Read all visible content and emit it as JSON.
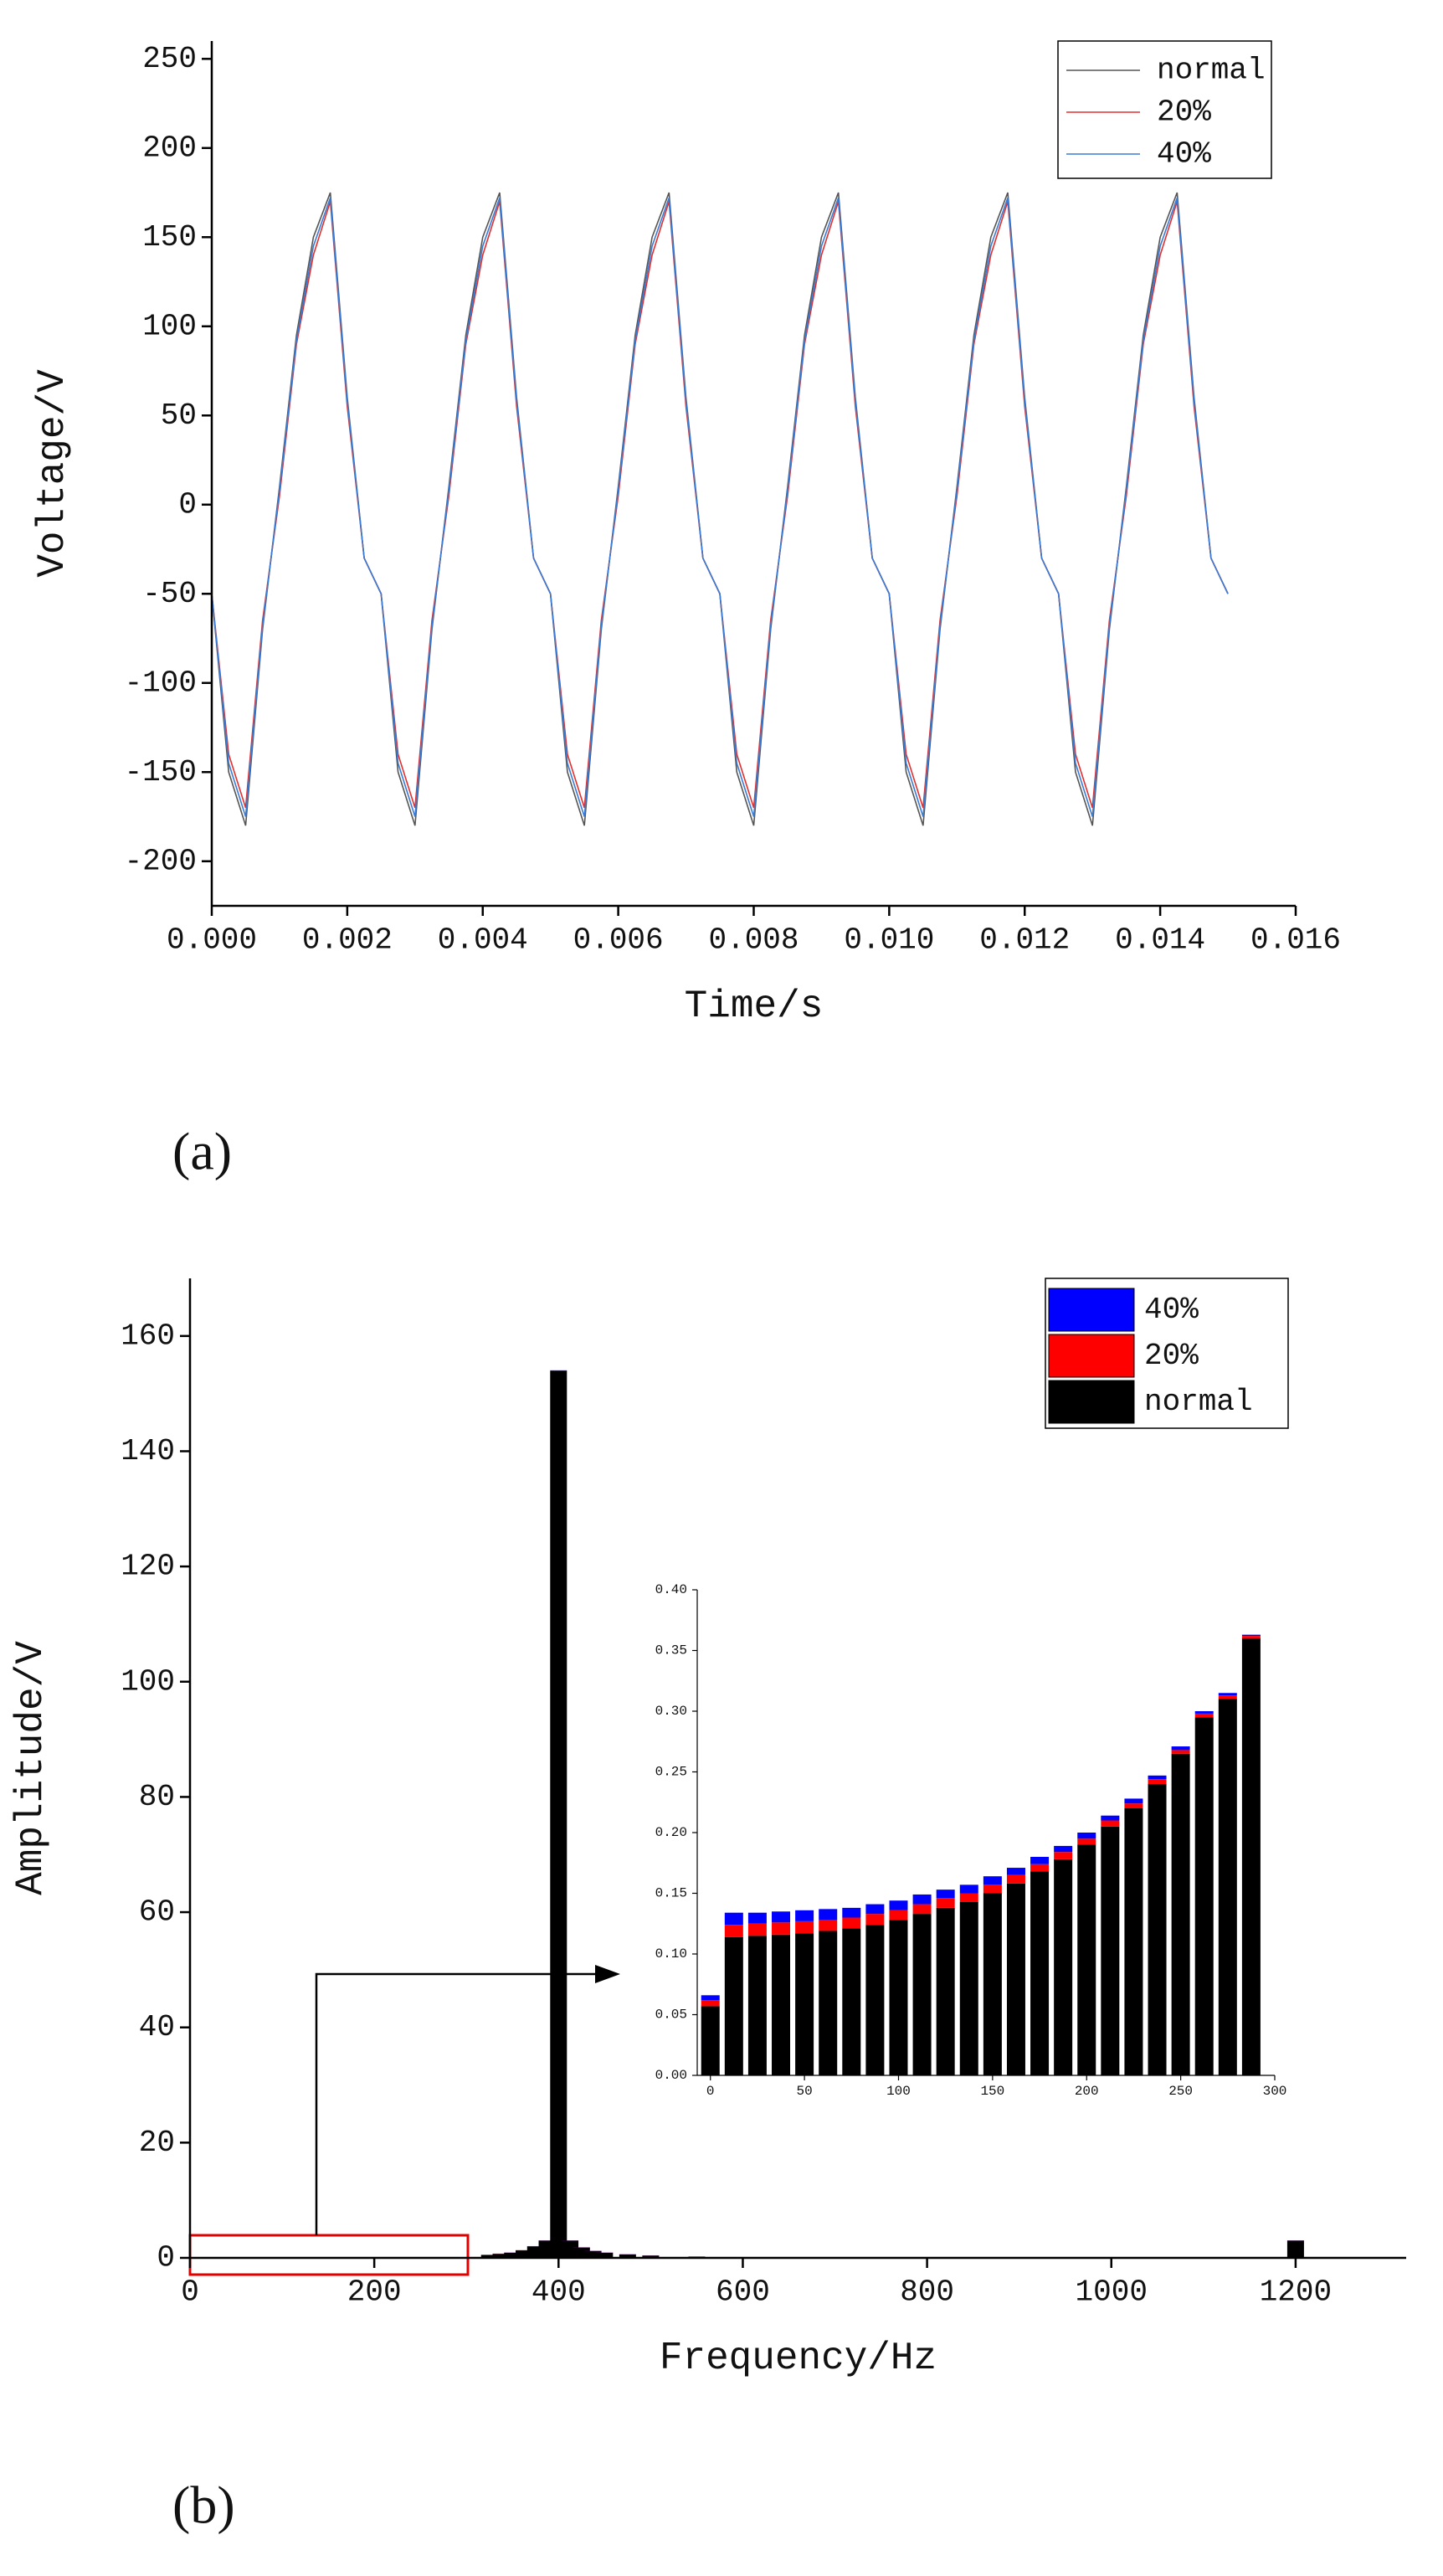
{
  "chart_data": [
    {
      "type": "line",
      "annotation": "(a)",
      "xlabel": "Time/s",
      "ylabel": "Voltage/V",
      "x": [
        0,
        0.00025,
        0.0005,
        0.00075,
        0.001,
        0.00125,
        0.0015,
        0.00175,
        0.002,
        0.00225,
        0.0025,
        0.00275,
        0.003,
        0.00325,
        0.0035,
        0.00375,
        0.004,
        0.00425,
        0.0045,
        0.00475,
        0.005,
        0.00525,
        0.0055,
        0.00575,
        0.006,
        0.00625,
        0.0065,
        0.00675,
        0.007,
        0.00725,
        0.0075,
        0.00775,
        0.008,
        0.00825,
        0.0085,
        0.00875,
        0.009,
        0.00925,
        0.0095,
        0.00975,
        0.01,
        0.01025,
        0.0105,
        0.01075,
        0.011,
        0.01125,
        0.0115,
        0.01175,
        0.012,
        0.01225,
        0.0125,
        0.01275,
        0.013,
        0.01325,
        0.0135,
        0.01375,
        0.014,
        0.01425,
        0.0145,
        0.01475,
        0.015
      ],
      "series": [
        {
          "name": "normal",
          "color": "#555555",
          "values": [
            -50,
            -150,
            -180,
            -70,
            10,
            95,
            150,
            175,
            60,
            -30,
            -50,
            -150,
            -180,
            -70,
            10,
            95,
            150,
            175,
            60,
            -30,
            -50,
            -150,
            -180,
            -70,
            10,
            95,
            150,
            175,
            60,
            -30,
            -50,
            -150,
            -180,
            -70,
            10,
            95,
            150,
            175,
            60,
            -30,
            -50,
            -150,
            -180,
            -70,
            10,
            95,
            150,
            175,
            60,
            -30,
            -50,
            -150,
            -180,
            -70,
            10,
            95,
            150,
            175,
            60,
            -30,
            -50
          ]
        },
        {
          "name": "20%",
          "color": "#e03030",
          "values": [
            -50,
            -140,
            -170,
            -65,
            5,
            90,
            140,
            170,
            55,
            -30,
            -50,
            -140,
            -170,
            -65,
            5,
            90,
            140,
            170,
            55,
            -30,
            -50,
            -140,
            -170,
            -65,
            5,
            90,
            140,
            170,
            55,
            -30,
            -50,
            -140,
            -170,
            -65,
            5,
            90,
            140,
            170,
            55,
            -30,
            -50,
            -140,
            -170,
            -65,
            5,
            90,
            140,
            170,
            55,
            -30,
            -50,
            -140,
            -170,
            -65,
            5,
            90,
            140,
            170,
            55,
            -30,
            -50
          ]
        },
        {
          "name": "40%",
          "color": "#3a7bd5",
          "values": [
            -50,
            -145,
            -175,
            -68,
            8,
            92,
            145,
            172,
            58,
            -30,
            -50,
            -145,
            -175,
            -68,
            8,
            92,
            145,
            172,
            58,
            -30,
            -50,
            -145,
            -175,
            -68,
            8,
            92,
            145,
            172,
            58,
            -30,
            -50,
            -145,
            -175,
            -68,
            8,
            92,
            145,
            172,
            58,
            -30,
            -50,
            -145,
            -175,
            -68,
            8,
            92,
            145,
            172,
            58,
            -30,
            -50,
            -145,
            -175,
            -68,
            8,
            92,
            145,
            172,
            58,
            -30,
            -50
          ]
        }
      ],
      "xlim": [
        0,
        0.016
      ],
      "ylim": [
        -225,
        260
      ],
      "xticks": [
        {
          "value": 0,
          "label": "0.000"
        },
        {
          "value": 0.002,
          "label": "0.002"
        },
        {
          "value": 0.004,
          "label": "0.004"
        },
        {
          "value": 0.006,
          "label": "0.006"
        },
        {
          "value": 0.008,
          "label": "0.008"
        },
        {
          "value": 0.01,
          "label": "0.010"
        },
        {
          "value": 0.012,
          "label": "0.012"
        },
        {
          "value": 0.014,
          "label": "0.014"
        },
        {
          "value": 0.016,
          "label": "0.016"
        }
      ],
      "yticks": [
        -200,
        -150,
        -100,
        -50,
        0,
        50,
        100,
        150,
        200,
        250
      ],
      "legend": "upper right"
    },
    {
      "type": "bar",
      "stacked": true,
      "annotation": "(b)",
      "xlabel": "Frequency/Hz",
      "ylabel": "Amplitude/V",
      "x": [
        325,
        337.5,
        350,
        362.5,
        375,
        387.5,
        400,
        412.5,
        425,
        437.5,
        450,
        475,
        500,
        550,
        1200
      ],
      "series": [
        {
          "name": "normal",
          "color": "#000000",
          "values": [
            0.5,
            0.7,
            0.9,
            1.3,
            2,
            3,
            154,
            3,
            1.8,
            1.2,
            0.9,
            0.6,
            0.4,
            0.2,
            3
          ]
        },
        {
          "name": "20%",
          "color": "#ff0000",
          "values": [
            0.02,
            0.02,
            0.02,
            0.02,
            0.02,
            0.02,
            0.02,
            0.02,
            0.02,
            0.02,
            0.02,
            0.02,
            0.02,
            0.02,
            0.02
          ]
        },
        {
          "name": "40%",
          "color": "#0000ff",
          "values": [
            0.02,
            0.02,
            0.02,
            0.02,
            0.02,
            0.02,
            0.02,
            0.02,
            0.02,
            0.02,
            0.02,
            0.02,
            0.02,
            0.02,
            0.02
          ]
        }
      ],
      "xlim": [
        0,
        1320
      ],
      "ylim": [
        0,
        170
      ],
      "xticks": [
        0,
        200,
        400,
        600,
        800,
        1000,
        1200
      ],
      "yticks": [
        0,
        20,
        40,
        60,
        80,
        100,
        120,
        140,
        160
      ],
      "legend": "upper right"
    },
    {
      "type": "bar",
      "stacked": true,
      "x": [
        0,
        12.5,
        25,
        37.5,
        50,
        62.5,
        75,
        87.5,
        100,
        112.5,
        125,
        137.5,
        150,
        162.5,
        175,
        187.5,
        200,
        212.5,
        225,
        237.5,
        250,
        262.5,
        275,
        287.5
      ],
      "series": [
        {
          "name": "normal",
          "color": "#000000",
          "values": [
            0.057,
            0.114,
            0.115,
            0.116,
            0.117,
            0.119,
            0.121,
            0.124,
            0.128,
            0.133,
            0.138,
            0.143,
            0.15,
            0.158,
            0.168,
            0.178,
            0.19,
            0.205,
            0.22,
            0.24,
            0.265,
            0.295,
            0.31,
            0.36
          ]
        },
        {
          "name": "20%",
          "color": "#ff0000",
          "values": [
            0.005,
            0.01,
            0.01,
            0.01,
            0.01,
            0.009,
            0.009,
            0.009,
            0.008,
            0.008,
            0.008,
            0.007,
            0.007,
            0.007,
            0.006,
            0.006,
            0.005,
            0.005,
            0.004,
            0.004,
            0.003,
            0.003,
            0.003,
            0.002
          ]
        },
        {
          "name": "40%",
          "color": "#0000ff",
          "values": [
            0.004,
            0.01,
            0.009,
            0.009,
            0.009,
            0.009,
            0.008,
            0.008,
            0.008,
            0.008,
            0.007,
            0.007,
            0.007,
            0.006,
            0.006,
            0.005,
            0.005,
            0.004,
            0.004,
            0.003,
            0.003,
            0.002,
            0.002,
            0.001
          ]
        }
      ],
      "xlim": [
        -7,
        300
      ],
      "ylim": [
        0,
        0.4
      ],
      "xticks": [
        0,
        50,
        100,
        150,
        200,
        250,
        300
      ],
      "yticks": [
        {
          "value": 0,
          "label": "0.00"
        },
        {
          "value": 0.05,
          "label": "0.05"
        },
        {
          "value": 0.1,
          "label": "0.10"
        },
        {
          "value": 0.15,
          "label": "0.15"
        },
        {
          "value": 0.2,
          "label": "0.20"
        },
        {
          "value": 0.25,
          "label": "0.25"
        },
        {
          "value": 0.3,
          "label": "0.30"
        },
        {
          "value": 0.35,
          "label": "0.35"
        },
        {
          "value": 0.4,
          "label": "0.40"
        }
      ]
    }
  ]
}
